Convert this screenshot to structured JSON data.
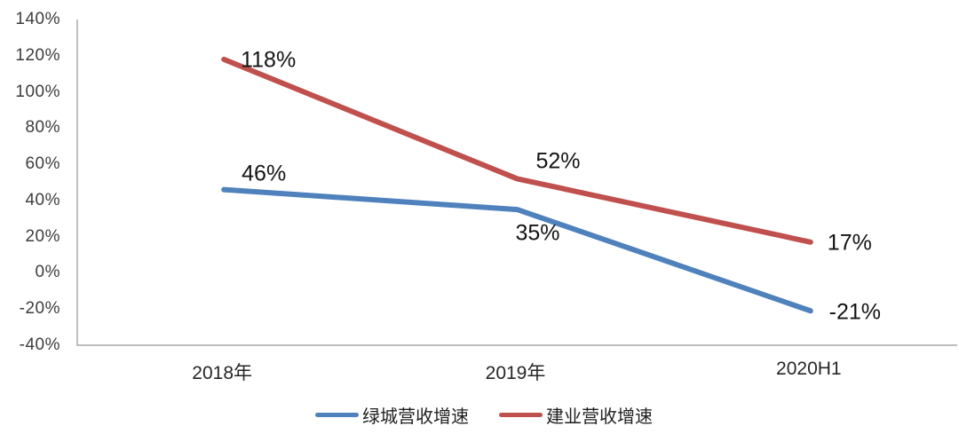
{
  "chart_data": {
    "type": "line",
    "categories": [
      "2018年",
      "2019年",
      "2020H1"
    ],
    "series": [
      {
        "name": "绿城营收增速",
        "color": "#4F81BD",
        "values": [
          46,
          35,
          -21
        ],
        "labels": [
          "46%",
          "35%",
          "-21%"
        ]
      },
      {
        "name": "建业营收增速",
        "color": "#C0504D",
        "values": [
          118,
          52,
          17
        ],
        "labels": [
          "118%",
          "52%",
          "17%"
        ]
      }
    ],
    "title": "",
    "xlabel": "",
    "ylabel": "",
    "ylim": [
      -40,
      140
    ],
    "ytick_step": 20,
    "ytick_labels": [
      "140%",
      "120%",
      "100%",
      "80%",
      "60%",
      "40%",
      "20%",
      "0%",
      "-20%",
      "-40%"
    ],
    "grid": false,
    "legend_position": "bottom"
  },
  "colors": {
    "axis_line": "#a6a6a6",
    "tick_text": "#3d3d3d",
    "data_label": "#141414",
    "background": "#ffffff"
  }
}
